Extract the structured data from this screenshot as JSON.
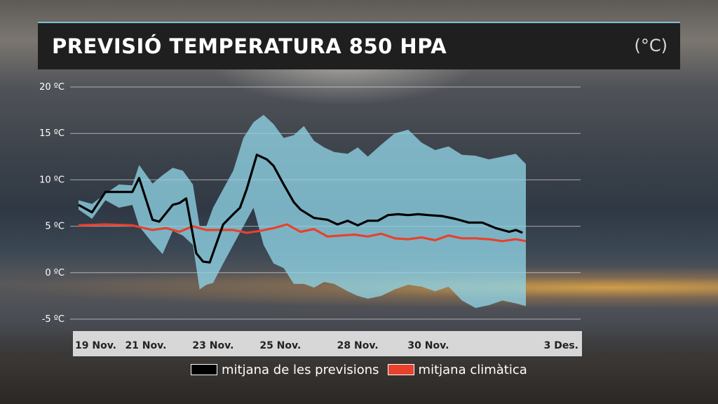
{
  "title": "PREVISIÓ TEMPERATURA 850 HPA",
  "unit": "(°C)",
  "colors": {
    "forecast_mean": "#000000",
    "climate_mean": "#e8412c",
    "spread_band": "#8fd3e6",
    "title_bar": "#1f1f1f"
  },
  "legend": [
    {
      "label": "mitjana de les previsions",
      "color": "#000000"
    },
    {
      "label": "mitjana climàtica",
      "color": "#e8412c"
    }
  ],
  "chart_data": {
    "type": "line",
    "title": "PREVISIÓ TEMPERATURA 850 HPA",
    "xlabel": "",
    "ylabel": "",
    "ylim": [
      -5,
      20
    ],
    "xlim": [
      0,
      14.8
    ],
    "yticks": [
      {
        "value": 20,
        "label": "20 ºC"
      },
      {
        "value": 15,
        "label": "15 ºC"
      },
      {
        "value": 10,
        "label": "10 ºC"
      },
      {
        "value": 5,
        "label": "5 ºC"
      },
      {
        "value": 0,
        "label": "0 ºC"
      },
      {
        "value": -5,
        "label": "-5 ºC"
      }
    ],
    "xticks": [
      {
        "value": 0,
        "label": "19 Nov."
      },
      {
        "value": 2,
        "label": "21 Nov."
      },
      {
        "value": 4,
        "label": "23 Nov."
      },
      {
        "value": 6,
        "label": "25 Nov."
      },
      {
        "value": 8.3,
        "label": "28 Nov."
      },
      {
        "value": 10.4,
        "label": "30 Nov."
      },
      {
        "value": 12.8,
        "label": "3 Des."
      }
    ],
    "grid": true,
    "series": [
      {
        "name": "mitjana de les previsions",
        "x": [
          0,
          0.4,
          0.8,
          1.2,
          1.6,
          1.8,
          2.2,
          2.4,
          2.8,
          3.0,
          3.2,
          3.5,
          3.7,
          3.9,
          4.3,
          4.6,
          4.8,
          5.0,
          5.3,
          5.6,
          5.8,
          6.1,
          6.4,
          6.6,
          7.0,
          7.4,
          7.7,
          8.0,
          8.3,
          8.6,
          8.9,
          9.2,
          9.5,
          9.8,
          10.1,
          10.4,
          10.8,
          11.2,
          11.6,
          12.0,
          12.4,
          12.8,
          13.0,
          13.2
        ],
        "y": [
          7.3,
          6.5,
          8.7,
          8.7,
          8.7,
          10.2,
          5.7,
          5.5,
          7.3,
          7.5,
          8.0,
          2.1,
          1.2,
          1.1,
          5.2,
          6.3,
          7.0,
          9.0,
          12.7,
          12.2,
          11.5,
          9.5,
          7.6,
          6.8,
          5.9,
          5.7,
          5.2,
          5.6,
          5.1,
          5.6,
          5.6,
          6.2,
          6.3,
          6.2,
          6.3,
          6.2,
          6.1,
          5.8,
          5.4,
          5.4,
          4.8,
          4.4,
          4.6,
          4.3
        ]
      },
      {
        "name": "mitjana climàtica",
        "x": [
          0,
          0.8,
          1.6,
          2.2,
          2.6,
          3.0,
          3.4,
          3.8,
          4.2,
          4.6,
          5.0,
          5.4,
          5.8,
          6.2,
          6.6,
          7.0,
          7.4,
          7.8,
          8.2,
          8.6,
          9.0,
          9.4,
          9.8,
          10.2,
          10.6,
          11.0,
          11.4,
          11.8,
          12.2,
          12.6,
          13.0,
          13.3
        ],
        "y": [
          5.1,
          5.2,
          5.1,
          4.6,
          4.8,
          4.4,
          5.0,
          4.6,
          4.6,
          4.6,
          4.3,
          4.5,
          4.8,
          5.2,
          4.4,
          4.7,
          3.9,
          4.0,
          4.1,
          3.9,
          4.2,
          3.7,
          3.6,
          3.8,
          3.5,
          4.0,
          3.7,
          3.7,
          3.6,
          3.4,
          3.6,
          3.4
        ]
      }
    ],
    "band": {
      "x": [
        0,
        0.4,
        0.8,
        1.2,
        1.6,
        1.8,
        2.2,
        2.5,
        2.8,
        3.1,
        3.4,
        3.6,
        3.8,
        4.0,
        4.3,
        4.6,
        4.9,
        5.2,
        5.5,
        5.8,
        6.1,
        6.4,
        6.7,
        7.0,
        7.3,
        7.6,
        8.0,
        8.3,
        8.6,
        9.0,
        9.4,
        9.8,
        10.2,
        10.6,
        11.0,
        11.4,
        11.8,
        12.2,
        12.6,
        13.0,
        13.3
      ],
      "upper": [
        7.8,
        7.4,
        8.5,
        9.5,
        9.4,
        11.6,
        9.6,
        10.5,
        11.3,
        11.0,
        9.5,
        5.0,
        5.0,
        7.0,
        9.0,
        11.0,
        14.5,
        16.2,
        17.0,
        16.0,
        14.5,
        14.8,
        15.8,
        14.2,
        13.5,
        13.0,
        12.8,
        13.5,
        12.5,
        13.8,
        15.0,
        15.4,
        14.0,
        13.2,
        13.6,
        12.7,
        12.6,
        12.2,
        12.5,
        12.8,
        11.7
      ],
      "lower": [
        6.8,
        5.8,
        7.8,
        7.0,
        7.3,
        5.0,
        3.2,
        2.0,
        4.5,
        4.0,
        3.0,
        -1.8,
        -1.3,
        -1.1,
        1.0,
        3.0,
        5.0,
        7.0,
        3.0,
        1.0,
        0.5,
        -1.2,
        -1.2,
        -1.6,
        -1.0,
        -1.2,
        -2.0,
        -2.5,
        -2.8,
        -2.5,
        -1.8,
        -1.3,
        -1.5,
        -2.0,
        -1.5,
        -3.0,
        -3.8,
        -3.5,
        -3.0,
        -3.3,
        -3.6
      ]
    }
  }
}
